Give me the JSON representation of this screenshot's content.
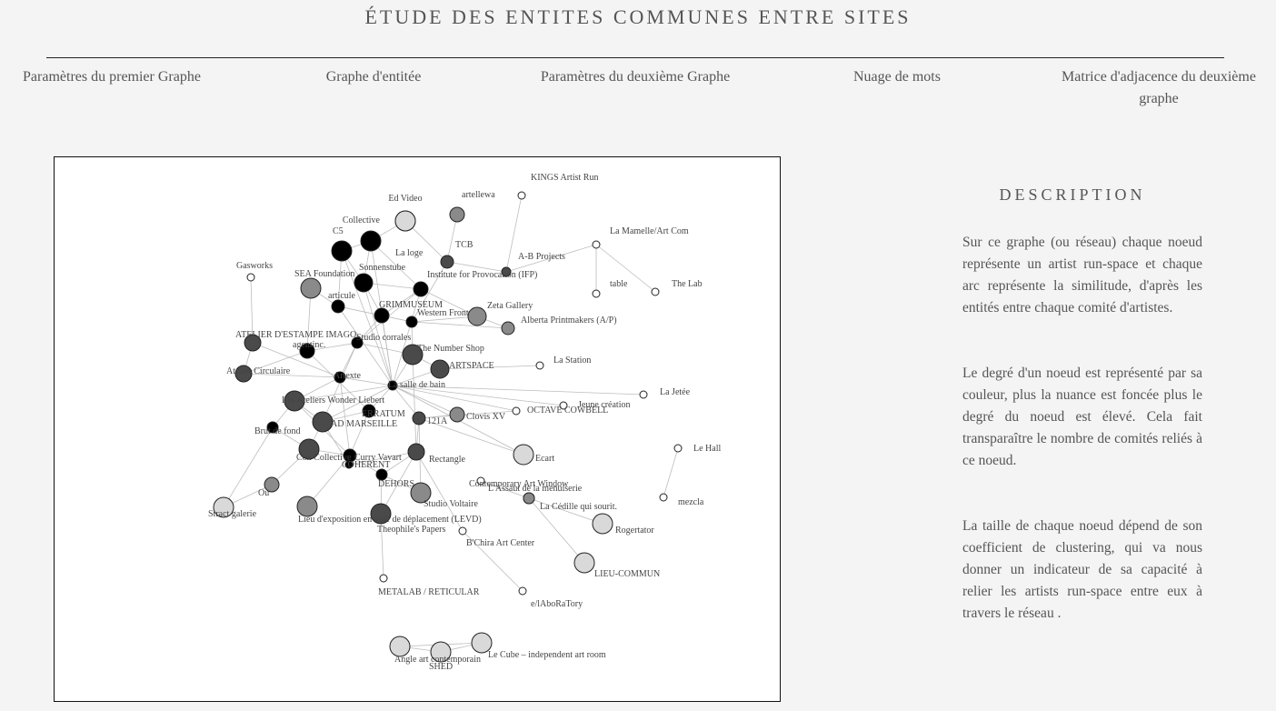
{
  "header": {
    "title": "ÉTUDE DES ENTITES COMMUNES ENTRE SITES",
    "nav": [
      {
        "label": "Paramètres du premier Graphe"
      },
      {
        "label": "Graphe d'entitée"
      },
      {
        "label": "Paramètres du deuxième Graphe"
      },
      {
        "label": "Nuage de mots"
      },
      {
        "label": "Matrice d'adjacence du deuxième graphe"
      }
    ]
  },
  "description": {
    "title": "DESCRIPTION",
    "paragraphs": [
      "Sur ce graphe (ou réseau) chaque noeud représente un artist run-space et chaque arc représente la similitude, d'après les entités entre chaque comité d'artistes.",
      "Le degré d'un noeud est représenté par sa couleur, plus la nuance est foncée plus le degré du noeud est élevé. Cela fait transparaître le nombre de comités reliés à ce noeud.",
      "La taille de chaque noeud dépend de son coefficient de clustering, qui va nous donner un indicateur de sa capacité à relier les artists run-space entre eux à travers le réseau ."
    ]
  },
  "graph": {
    "colors": {
      "high_degree": "#000000",
      "mid_degree": "#4a4a4a",
      "low_mid_degree": "#8a8a8a",
      "low_degree": "#d9d9d9",
      "isolated": "#ffffff",
      "edge": "#bdbdbd"
    },
    "nodes": [
      {
        "label": "KINGS Artist Run",
        "shade": "isolated"
      },
      {
        "label": "Ed Video",
        "shade": "low_degree"
      },
      {
        "label": "artellewa",
        "shade": "low_mid_degree"
      },
      {
        "label": "Collective",
        "shade": "low_degree"
      },
      {
        "label": "C5",
        "shade": "high_degree"
      },
      {
        "label": "La loge",
        "shade": "high_degree"
      },
      {
        "label": "TCB",
        "shade": "mid_degree"
      },
      {
        "label": "La Mamelle/Art Com",
        "shade": "isolated"
      },
      {
        "label": "A-B Projects",
        "shade": "mid_degree"
      },
      {
        "label": "Gasworks",
        "shade": "isolated"
      },
      {
        "label": "Sonnenstube",
        "shade": "high_degree"
      },
      {
        "label": "SEA Foundation",
        "shade": "low_mid_degree"
      },
      {
        "label": "Institute for Provocation (IFP)",
        "shade": "high_degree"
      },
      {
        "label": "table",
        "shade": "isolated"
      },
      {
        "label": "The Lab",
        "shade": "isolated"
      },
      {
        "label": "articule",
        "shade": "high_degree"
      },
      {
        "label": "GRIMMUSEUM",
        "shade": "high_degree"
      },
      {
        "label": "Zeta Gallery",
        "shade": "low_mid_degree"
      },
      {
        "label": "Western Front",
        "shade": "high_degree"
      },
      {
        "label": "Alberta Printmakers (A/P)",
        "shade": "low_mid_degree"
      },
      {
        "label": "ATELIER D'ESTAMPE IMAGO",
        "shade": "mid_degree"
      },
      {
        "label": "agentinc.",
        "shade": "high_degree"
      },
      {
        "label": "Studio corrales",
        "shade": "high_degree"
      },
      {
        "label": "The Number Shop",
        "shade": "mid_degree"
      },
      {
        "label": "Atelier Circulaire",
        "shade": "mid_degree"
      },
      {
        "label": "ARTSPACE",
        "shade": "mid_degree"
      },
      {
        "label": "La Station",
        "shade": "isolated"
      },
      {
        "label": "Artexte",
        "shade": "high_degree"
      },
      {
        "label": "La salle de bain",
        "shade": "high_degree"
      },
      {
        "label": "La Jetée",
        "shade": "isolated"
      },
      {
        "label": "Les Ateliers Wonder Liebert",
        "shade": "mid_degree"
      },
      {
        "label": "Jeune création",
        "shade": "isolated"
      },
      {
        "label": "OCTAVE COWBELL",
        "shade": "isolated"
      },
      {
        "label": "ERRATUM",
        "shade": "high_degree"
      },
      {
        "label": "Clovis XV",
        "shade": "low_mid_degree"
      },
      {
        "label": "AD MARSEILLE",
        "shade": "mid_degree"
      },
      {
        "label": "121A",
        "shade": "mid_degree"
      },
      {
        "label": "Brut de fond",
        "shade": "high_degree"
      },
      {
        "label": "Le Hall",
        "shade": "isolated"
      },
      {
        "label": "Ecart",
        "shade": "low_degree"
      },
      {
        "label": "Cox Collective",
        "shade": "mid_degree"
      },
      {
        "label": "Curry Vavart",
        "shade": "high_degree"
      },
      {
        "label": "Rectangle",
        "shade": "mid_degree"
      },
      {
        "label": "COHERENT",
        "shade": "high_degree"
      },
      {
        "label": "DEHORS",
        "shade": "high_degree"
      },
      {
        "label": "Contemporary Art Window",
        "shade": "isolated"
      },
      {
        "label": "L'Assaut de la menuiserie",
        "shade": "low_mid_degree"
      },
      {
        "label": "mezcla",
        "shade": "isolated"
      },
      {
        "label": "Ou",
        "shade": "low_mid_degree"
      },
      {
        "label": "Studio Voltaire",
        "shade": "low_mid_degree"
      },
      {
        "label": "La Cédille qui sourit.",
        "shade": "low_mid_degree"
      },
      {
        "label": "Stract galerie",
        "shade": "low_degree"
      },
      {
        "label": "Lieu d'exposition en voie de déplacement (LEVD)",
        "shade": "low_mid_degree"
      },
      {
        "label": "Theophile's Papers",
        "shade": "mid_degree"
      },
      {
        "label": "Rogertator",
        "shade": "low_degree"
      },
      {
        "label": "B'Chira Art Center",
        "shade": "isolated"
      },
      {
        "label": "LIEU-COMMUN",
        "shade": "low_degree"
      },
      {
        "label": "METALAB / RETICULAR",
        "shade": "isolated"
      },
      {
        "label": "e/lAboRaTory",
        "shade": "isolated"
      },
      {
        "label": "Angle art contemporain",
        "shade": "low_degree"
      },
      {
        "label": "SHED",
        "shade": "low_degree"
      },
      {
        "label": "Le Cube – independent art room",
        "shade": "low_degree"
      }
    ]
  }
}
